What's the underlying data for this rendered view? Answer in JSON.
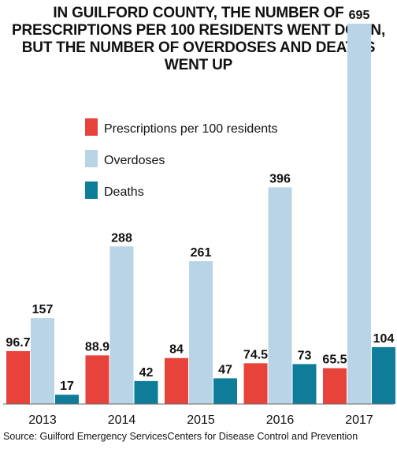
{
  "chart_data": {
    "type": "bar",
    "title": "IN GUILFORD COUNTY, THE NUMBER OF PRESCRIPTIONS PER 100 RESIDENTS WENT DOWN, BUT THE NUMBER OF OVERDOSES AND DEATHS WENT UP",
    "categories": [
      "2013",
      "2014",
      "2015",
      "2016",
      "2017"
    ],
    "series": [
      {
        "name": "Prescriptions per 100 residents",
        "color": "#e8433a",
        "values": [
          96.7,
          88.9,
          84,
          74.5,
          65.5
        ],
        "labels": [
          "96.7",
          "88.9",
          "84",
          "74.5",
          "65.5"
        ]
      },
      {
        "name": "Overdoses",
        "color": "#b8d4e6",
        "values": [
          157,
          288,
          261,
          396,
          695
        ],
        "labels": [
          "157",
          "288",
          "261",
          "396",
          "695"
        ]
      },
      {
        "name": "Deaths",
        "color": "#0f7d99",
        "values": [
          17,
          42,
          47,
          73,
          104
        ],
        "labels": [
          "17",
          "42",
          "47",
          "73",
          "104"
        ]
      }
    ],
    "ylim": [
      0,
      695
    ],
    "grid": false,
    "legend": "top-left",
    "xlabel": "",
    "ylabel": ""
  },
  "source": "Source: Guilford Emergency ServicesCenters for Disease Control and Prevention"
}
